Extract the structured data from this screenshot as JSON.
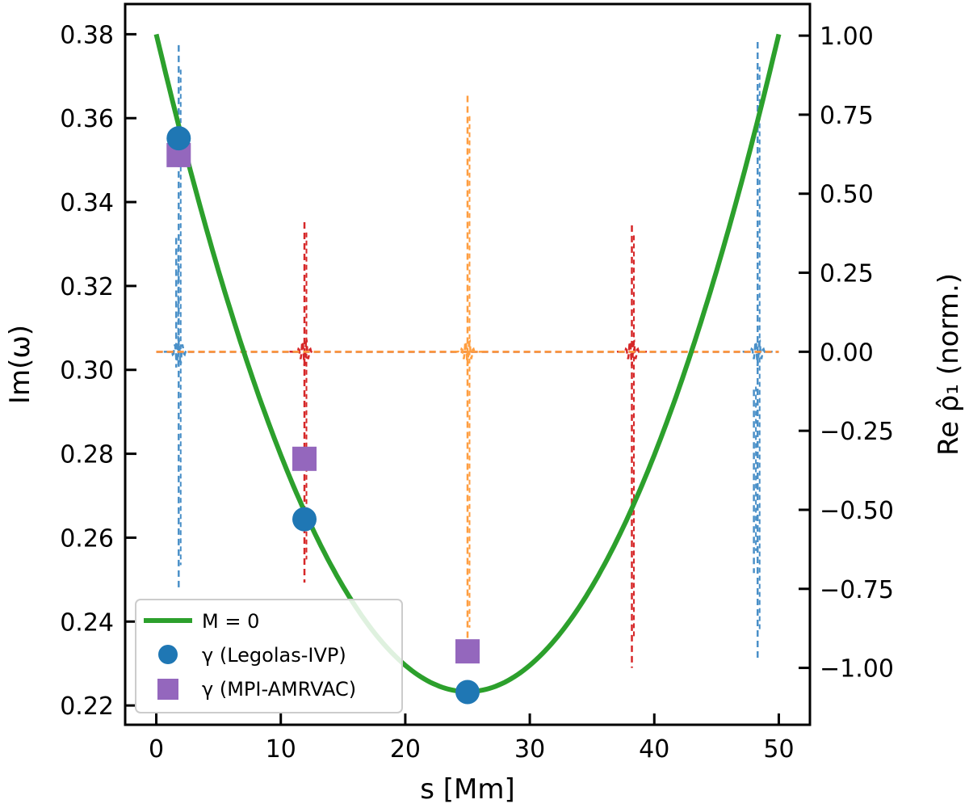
{
  "chart_data": {
    "type": "line",
    "xlabel": "s [Mm]",
    "ylabel_left": "Im(ω)",
    "ylabel_right": "Re ρ̂₁ (norm.)",
    "xlim": [
      -2.5,
      52.5
    ],
    "ylim_left": [
      0.2154,
      0.3872
    ],
    "ylim_right": [
      -1.18,
      1.1
    ],
    "x_ticks": [
      0,
      10,
      20,
      30,
      40,
      50
    ],
    "x_tick_labels": [
      "0",
      "10",
      "20",
      "30",
      "40",
      "50"
    ],
    "y_left_ticks": [
      0.22,
      0.24,
      0.26,
      0.28,
      0.3,
      0.32,
      0.34,
      0.36,
      0.38
    ],
    "y_left_tick_labels": [
      "0.22",
      "0.24",
      "0.26",
      "0.28",
      "0.30",
      "0.32",
      "0.34",
      "0.36",
      "0.38"
    ],
    "y_right_ticks": [
      -1.0,
      -0.75,
      -0.5,
      -0.25,
      0.0,
      0.25,
      0.5,
      0.75,
      1.0
    ],
    "y_right_tick_labels": [
      "−1.00",
      "−0.75",
      "−0.50",
      "−0.25",
      "0.00",
      "0.25",
      "0.50",
      "0.75",
      "1.00"
    ],
    "grid": false,
    "legend_position": "bottom-left",
    "parabola": {
      "name": "M = 0",
      "color": "#2ca02c",
      "vertex_x": 25,
      "vertex_y": 0.2233,
      "endpoint_y": 0.38
    },
    "points_legolas": {
      "name": "γ (Legolas-IVP)",
      "color": "#1f77b4",
      "x": [
        1.8,
        11.9,
        25.0
      ],
      "y": [
        0.3552,
        0.2644,
        0.2232
      ]
    },
    "points_mpi": {
      "name": "γ (MPI-AMRVAC)",
      "color": "#9467bd",
      "x": [
        1.8,
        11.9,
        25.0
      ],
      "y": [
        0.3512,
        0.2788,
        0.2329
      ]
    },
    "eigenfunctions": [
      {
        "color": "#4a90c8",
        "center": 1.8,
        "spikes": [
          {
            "x": 1.8,
            "top": 0.97,
            "bottom": -0.75
          },
          {
            "x": 1.6,
            "top": 0.36,
            "bottom": -0.05
          }
        ]
      },
      {
        "color": "#4a90c8",
        "center": 48.3,
        "spikes": [
          {
            "x": 48.3,
            "top": 0.98,
            "bottom": -0.98
          },
          {
            "x": 48.0,
            "top": -0.12,
            "bottom": -0.7
          }
        ]
      },
      {
        "color": "#d62728",
        "center": 11.9,
        "spikes": [
          {
            "x": 11.9,
            "top": 0.41,
            "bottom": -0.73
          }
        ]
      },
      {
        "color": "#d62728",
        "center": 38.2,
        "spikes": [
          {
            "x": 38.2,
            "top": 0.4,
            "bottom": -1.0
          }
        ]
      },
      {
        "color": "#ff9e40",
        "center": 25.0,
        "spikes": [
          {
            "x": 25.0,
            "top": 0.81,
            "bottom": -0.97
          }
        ]
      }
    ]
  }
}
